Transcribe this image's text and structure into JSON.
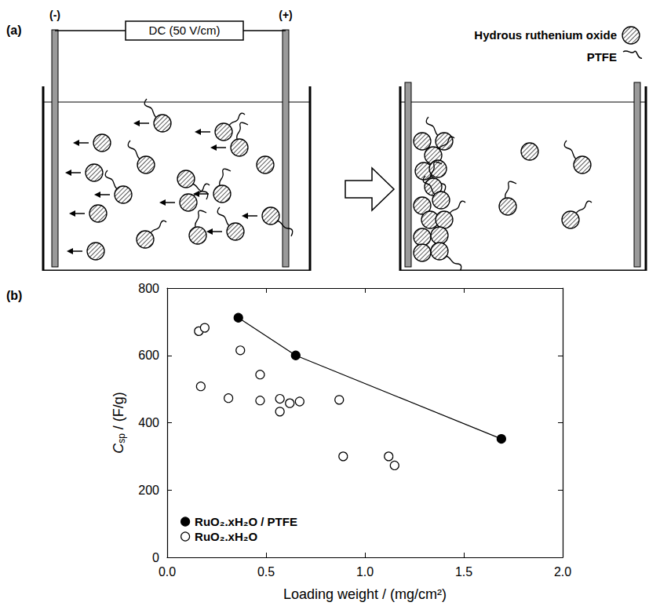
{
  "panel_a": {
    "label": "(a)",
    "power_supply": "DC (50 V/cm)",
    "cathode": "(-)",
    "anode": "(+)",
    "legend": [
      {
        "label": "Hydrous ruthenium oxide",
        "marker": "hatched-circle"
      },
      {
        "label": "PTFE",
        "marker": "squiggle"
      }
    ]
  },
  "chart_data": {
    "label": "(b)",
    "type": "scatter",
    "xlabel": "Loading weight / (mg/cm²)",
    "ylabel": {
      "main": "C",
      "sub": "sp",
      "rest": " / (F/g)"
    },
    "xlim": [
      0,
      2
    ],
    "xticks": [
      {
        "value": 0,
        "label": "0.0"
      },
      0.5,
      {
        "value": 1,
        "label": "1.0"
      },
      1.5,
      {
        "value": 2,
        "label": "2.0"
      }
    ],
    "ylim": [
      0,
      800
    ],
    "yticks": [
      0,
      200,
      400,
      600,
      800
    ],
    "grid": false,
    "legend": "lower left",
    "series": [
      {
        "name": "RuO₂.xH₂O / PTFE",
        "color": "#000000",
        "marker": "circle",
        "line_style": "solid",
        "x": [
          0.36,
          0.65,
          1.69
        ],
        "values": [
          712,
          600,
          352
        ]
      },
      {
        "name": "RuO₂.xH₂O",
        "color": "#000000",
        "marker": "open-circle",
        "line_style": "none",
        "x": [
          0.16,
          0.19,
          0.17,
          0.31,
          0.37,
          0.47,
          0.47,
          0.57,
          0.57,
          0.62,
          0.67,
          0.87,
          0.89,
          1.12,
          1.15
        ],
        "values": [
          672,
          682,
          508,
          473,
          615,
          543,
          466,
          471,
          433,
          458,
          463,
          468,
          300,
          300,
          273
        ]
      }
    ]
  }
}
